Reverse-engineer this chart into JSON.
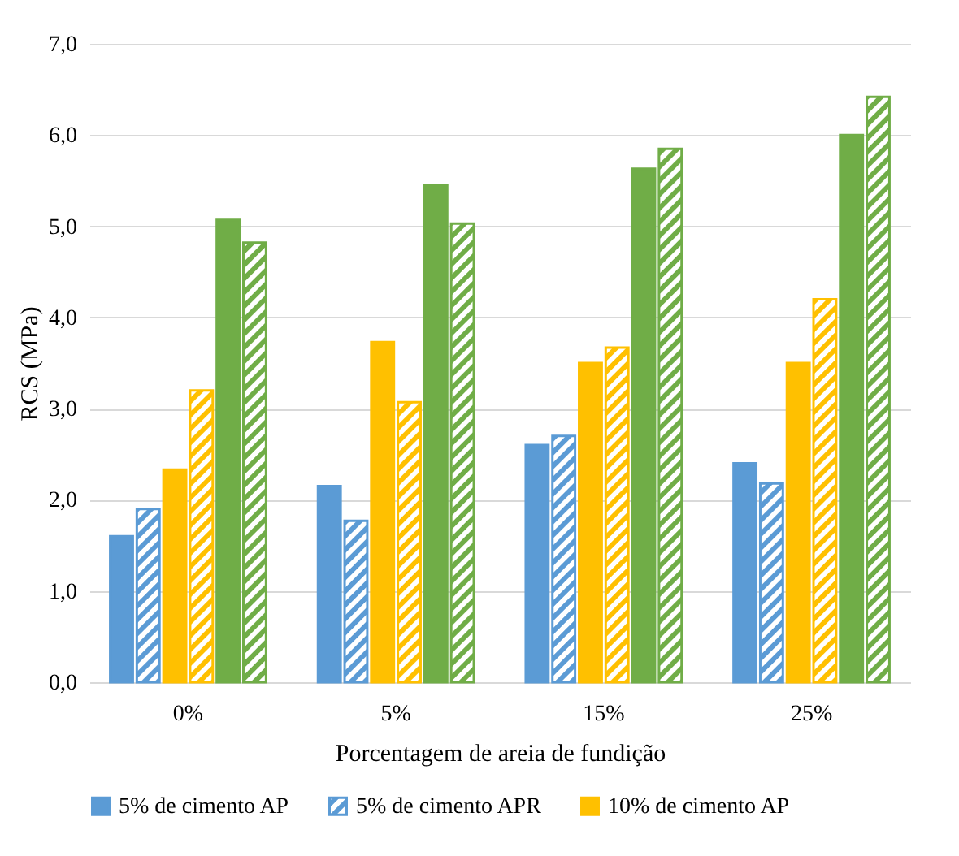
{
  "chart_data": {
    "type": "bar",
    "xlabel": "Porcentagem de areia de fundição",
    "ylabel": "RCS (MPa)",
    "categories": [
      "0%",
      "5%",
      "15%",
      "25%"
    ],
    "series": [
      {
        "name": "5% de cimento AP",
        "color": "#5b9bd5",
        "values": [
          1.6,
          2.15,
          2.6,
          2.4
        ]
      },
      {
        "name": "5% de cimento APR",
        "color": "#5b9bd5",
        "values": [
          1.9,
          1.77,
          2.7,
          2.18
        ]
      },
      {
        "name": "10% de cimento AP",
        "color": "#ffc000",
        "values": [
          2.33,
          3.73,
          3.5,
          3.5
        ]
      },
      {
        "color": "#ffc000",
        "values": [
          3.2,
          3.07,
          3.67,
          4.2
        ]
      },
      {
        "color": "#70ad47",
        "values": [
          5.07,
          5.45,
          5.63,
          6.0
        ]
      },
      {
        "color": "#70ad47",
        "values": [
          4.82,
          5.03,
          5.85,
          6.42
        ]
      }
    ],
    "ylim": [
      0,
      7
    ],
    "yticks": [
      {
        "value": 0,
        "label": "0,0"
      },
      {
        "value": 1,
        "label": "1,0"
      },
      {
        "value": 2,
        "label": "2,0"
      },
      {
        "value": 3,
        "label": "3,0"
      },
      {
        "value": 4,
        "label": "4,0"
      },
      {
        "value": 5,
        "label": "5,0"
      },
      {
        "value": 6,
        "label": "6,0"
      },
      {
        "value": 7,
        "label": "7,0"
      }
    ],
    "grid": "y",
    "legend": "bottom"
  }
}
